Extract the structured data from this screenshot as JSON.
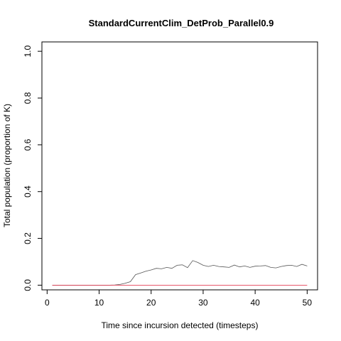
{
  "chart_data": {
    "type": "line",
    "title": "StandardCurrentClim_DetProb_Parallel0.9",
    "xlabel": "Time since incursion detected (timesteps)",
    "ylabel": "Total population (proportion of K)",
    "xlim": [
      -1,
      52
    ],
    "ylim": [
      -0.02,
      1.04
    ],
    "xticks": [
      0,
      10,
      20,
      30,
      40,
      50
    ],
    "yticks": [
      0.0,
      0.2,
      0.4,
      0.6,
      0.8,
      1.0
    ],
    "xtick_labels": [
      "0",
      "10",
      "20",
      "30",
      "40",
      "50"
    ],
    "ytick_labels": [
      "0.0",
      "0.2",
      "0.4",
      "0.6",
      "0.8",
      "1.0"
    ],
    "grid": false,
    "series": [
      {
        "color": "#555555",
        "x": [
          1,
          2,
          3,
          4,
          5,
          6,
          7,
          8,
          9,
          10,
          11,
          12,
          13,
          14,
          15,
          16,
          17,
          18,
          19,
          20,
          21,
          22,
          23,
          24,
          25,
          26,
          27,
          28,
          29,
          30,
          31,
          32,
          33,
          34,
          35,
          36,
          37,
          38,
          39,
          40,
          41,
          42,
          43,
          44,
          45,
          46,
          47,
          48,
          49,
          50
        ],
        "y": [
          0,
          0,
          0,
          0,
          0,
          0,
          0,
          0,
          0,
          0,
          0,
          0,
          0.001,
          0.003,
          0.008,
          0.015,
          0.045,
          0.052,
          0.06,
          0.065,
          0.072,
          0.07,
          0.076,
          0.072,
          0.085,
          0.087,
          0.075,
          0.105,
          0.097,
          0.085,
          0.08,
          0.085,
          0.08,
          0.078,
          0.076,
          0.086,
          0.078,
          0.082,
          0.076,
          0.081,
          0.082,
          0.084,
          0.076,
          0.074,
          0.08,
          0.084,
          0.085,
          0.08,
          0.089,
          0.082
        ]
      },
      {
        "color": "#e0213a",
        "x": [
          1,
          2,
          3,
          4,
          5,
          6,
          7,
          8,
          9,
          10,
          11,
          12,
          13,
          14,
          15,
          16,
          17,
          18,
          19,
          20,
          21,
          22,
          23,
          24,
          25,
          26,
          27,
          28,
          29,
          30,
          31,
          32,
          33,
          34,
          35,
          36,
          37,
          38,
          39,
          40,
          41,
          42,
          43,
          44,
          45,
          46,
          47,
          48,
          49,
          50
        ],
        "y": [
          0,
          0,
          0,
          0,
          0,
          0,
          0,
          0,
          0,
          0,
          0,
          0,
          0,
          0,
          0,
          0,
          0,
          0,
          0,
          0,
          0,
          0,
          0,
          0,
          0,
          0,
          0,
          0,
          0,
          0,
          0,
          0,
          0,
          0,
          0,
          0,
          0,
          0,
          0,
          0,
          0,
          0,
          0,
          0,
          0,
          0,
          0,
          0,
          0,
          0
        ]
      }
    ]
  }
}
